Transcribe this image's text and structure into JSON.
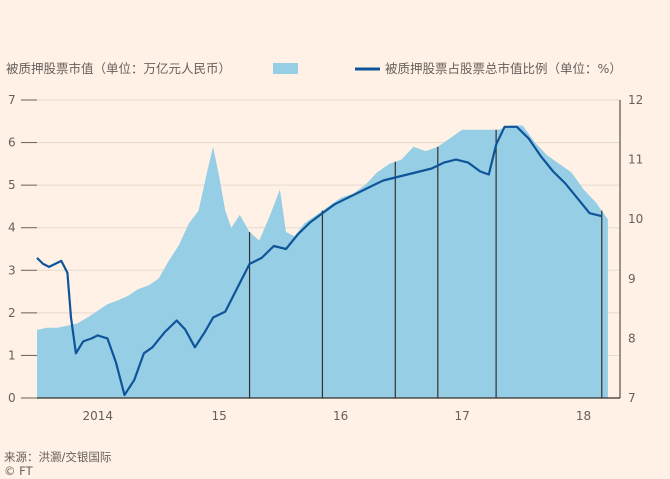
{
  "chart_data": {
    "type": "area",
    "legend": {
      "area_label": "被质押股票市值（单位：万亿元人民币）",
      "line_label": "被质押股票占股票总市值比例（单位：%）"
    },
    "x_labels": [
      "2014",
      "15",
      "16",
      "17",
      "18"
    ],
    "y_left": {
      "ticks": [
        "7",
        "6",
        "5",
        "4",
        "3",
        "2",
        "1",
        "0"
      ],
      "range": [
        0,
        7
      ]
    },
    "y_right": {
      "ticks": [
        "12",
        "11",
        "10",
        "9",
        "8",
        "7"
      ],
      "range": [
        7,
        12
      ]
    },
    "x_range": [
      2014.0,
      2018.8
    ],
    "x_tick_years": [
      2014.5,
      2015.5,
      2016.5,
      2017.5,
      2018.5
    ],
    "pledged_market_value_trn_yuan": [
      [
        2014.0,
        1.6
      ],
      [
        2014.08,
        1.65
      ],
      [
        2014.17,
        1.65
      ],
      [
        2014.25,
        1.7
      ],
      [
        2014.33,
        1.75
      ],
      [
        2014.42,
        1.9
      ],
      [
        2014.5,
        2.05
      ],
      [
        2014.58,
        2.2
      ],
      [
        2014.67,
        2.3
      ],
      [
        2014.75,
        2.4
      ],
      [
        2014.83,
        2.55
      ],
      [
        2014.92,
        2.65
      ],
      [
        2015.0,
        2.8
      ],
      [
        2015.08,
        3.2
      ],
      [
        2015.17,
        3.6
      ],
      [
        2015.25,
        4.1
      ],
      [
        2015.33,
        4.4
      ],
      [
        2015.4,
        5.3
      ],
      [
        2015.45,
        5.9
      ],
      [
        2015.5,
        5.2
      ],
      [
        2015.55,
        4.4
      ],
      [
        2015.6,
        4.0
      ],
      [
        2015.67,
        4.3
      ],
      [
        2015.75,
        3.9
      ],
      [
        2015.83,
        3.7
      ],
      [
        2015.92,
        4.3
      ],
      [
        2016.0,
        4.9
      ],
      [
        2016.05,
        3.9
      ],
      [
        2016.12,
        3.8
      ],
      [
        2016.2,
        4.1
      ],
      [
        2016.3,
        4.3
      ],
      [
        2016.4,
        4.5
      ],
      [
        2016.5,
        4.7
      ],
      [
        2016.6,
        4.8
      ],
      [
        2016.7,
        5.0
      ],
      [
        2016.8,
        5.3
      ],
      [
        2016.9,
        5.5
      ],
      [
        2017.0,
        5.6
      ],
      [
        2017.1,
        5.9
      ],
      [
        2017.2,
        5.8
      ],
      [
        2017.3,
        5.9
      ],
      [
        2017.4,
        6.1
      ],
      [
        2017.5,
        6.3
      ],
      [
        2017.6,
        6.3
      ],
      [
        2017.7,
        6.3
      ],
      [
        2017.8,
        6.3
      ],
      [
        2017.9,
        6.4
      ],
      [
        2018.0,
        6.4
      ],
      [
        2018.1,
        6.0
      ],
      [
        2018.2,
        5.7
      ],
      [
        2018.3,
        5.5
      ],
      [
        2018.4,
        5.3
      ],
      [
        2018.5,
        4.9
      ],
      [
        2018.6,
        4.6
      ],
      [
        2018.7,
        4.2
      ]
    ],
    "pledged_share_of_total_market_cap_pct": [
      [
        2014.0,
        9.35
      ],
      [
        2014.05,
        9.25
      ],
      [
        2014.1,
        9.2
      ],
      [
        2014.15,
        9.25
      ],
      [
        2014.2,
        9.3
      ],
      [
        2014.25,
        9.1
      ],
      [
        2014.28,
        8.35
      ],
      [
        2014.32,
        7.75
      ],
      [
        2014.38,
        7.95
      ],
      [
        2014.45,
        8.0
      ],
      [
        2014.5,
        8.05
      ],
      [
        2014.58,
        8.0
      ],
      [
        2014.65,
        7.6
      ],
      [
        2014.72,
        7.05
      ],
      [
        2014.8,
        7.3
      ],
      [
        2014.88,
        7.75
      ],
      [
        2014.95,
        7.85
      ],
      [
        2015.05,
        8.1
      ],
      [
        2015.15,
        8.3
      ],
      [
        2015.22,
        8.15
      ],
      [
        2015.3,
        7.85
      ],
      [
        2015.38,
        8.1
      ],
      [
        2015.45,
        8.35
      ],
      [
        2015.55,
        8.45
      ],
      [
        2015.65,
        8.85
      ],
      [
        2015.75,
        9.25
      ],
      [
        2015.85,
        9.35
      ],
      [
        2015.95,
        9.55
      ],
      [
        2016.05,
        9.5
      ],
      [
        2016.15,
        9.75
      ],
      [
        2016.25,
        9.95
      ],
      [
        2016.35,
        10.1
      ],
      [
        2016.45,
        10.25
      ],
      [
        2016.55,
        10.35
      ],
      [
        2016.65,
        10.45
      ],
      [
        2016.75,
        10.55
      ],
      [
        2016.85,
        10.65
      ],
      [
        2016.95,
        10.7
      ],
      [
        2017.05,
        10.75
      ],
      [
        2017.15,
        10.8
      ],
      [
        2017.25,
        10.85
      ],
      [
        2017.35,
        10.95
      ],
      [
        2017.45,
        11.0
      ],
      [
        2017.55,
        10.95
      ],
      [
        2017.65,
        10.8
      ],
      [
        2017.72,
        10.75
      ],
      [
        2017.78,
        11.25
      ],
      [
        2017.85,
        11.55
      ],
      [
        2017.95,
        11.55
      ],
      [
        2018.05,
        11.35
      ],
      [
        2018.15,
        11.05
      ],
      [
        2018.25,
        10.8
      ],
      [
        2018.35,
        10.6
      ],
      [
        2018.45,
        10.35
      ],
      [
        2018.55,
        10.1
      ],
      [
        2018.65,
        10.05
      ]
    ],
    "vertical_markers": [
      2015.75,
      2016.35,
      2016.95,
      2017.3,
      2017.78,
      2018.65
    ],
    "colors": {
      "area": "#96cfe5",
      "line": "#0f5499",
      "marker": "#33302e",
      "axis": "#33302e",
      "background": "#fff1e5"
    }
  },
  "footer": {
    "source": "来源：洪灏/交银国际",
    "credit": "© FT"
  }
}
